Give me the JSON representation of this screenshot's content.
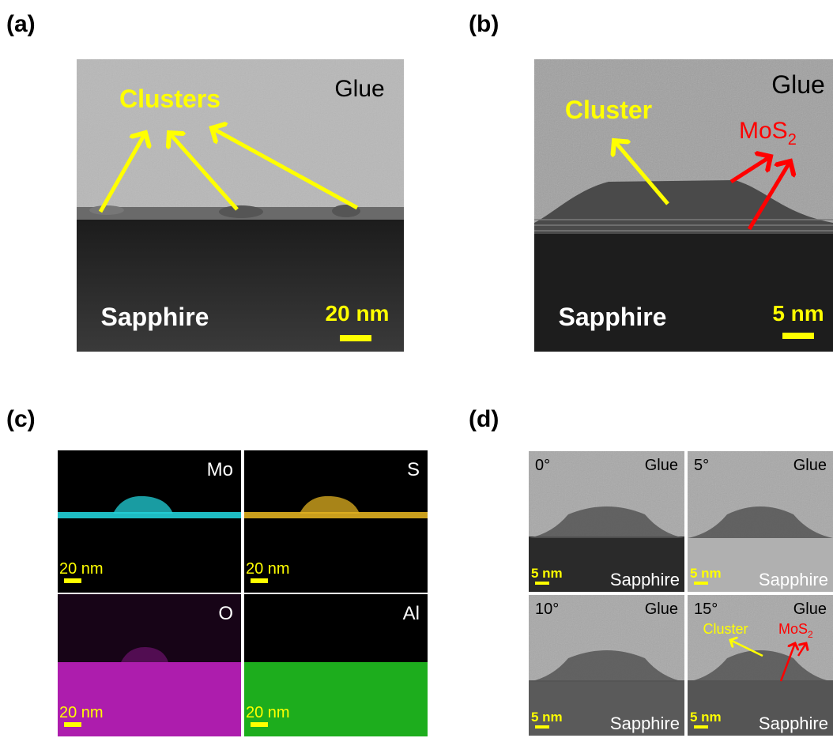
{
  "panel_a": {
    "label": "(a)",
    "glue": "Glue",
    "clusters": "Clusters",
    "substrate": "Sapphire",
    "scale": "20 nm"
  },
  "panel_b": {
    "label": "(b)",
    "glue": "Glue",
    "cluster": "Cluster",
    "mos2": "MoS",
    "mos2_sub": "2",
    "substrate": "Sapphire",
    "scale": "5 nm"
  },
  "panel_c": {
    "label": "(c)",
    "maps": [
      {
        "element": "Mo",
        "scale": "20 nm"
      },
      {
        "element": "S",
        "scale": "20 nm"
      },
      {
        "element": "O",
        "scale": "20 nm"
      },
      {
        "element": "Al",
        "scale": "20 nm"
      }
    ]
  },
  "panel_d": {
    "label": "(d)",
    "tiles": [
      {
        "angle": "0°",
        "glue": "Glue",
        "scale": "5 nm",
        "substrate": "Sapphire"
      },
      {
        "angle": "5°",
        "glue": "Glue",
        "scale": "5 nm",
        "substrate": "Sapphire"
      },
      {
        "angle": "10°",
        "glue": "Glue",
        "scale": "5 nm",
        "substrate": "Sapphire"
      },
      {
        "angle": "15°",
        "glue": "Glue",
        "scale": "5 nm",
        "substrate": "Sapphire"
      }
    ],
    "cluster": "Cluster",
    "mos2": "MoS",
    "mos2_sub": "2"
  }
}
